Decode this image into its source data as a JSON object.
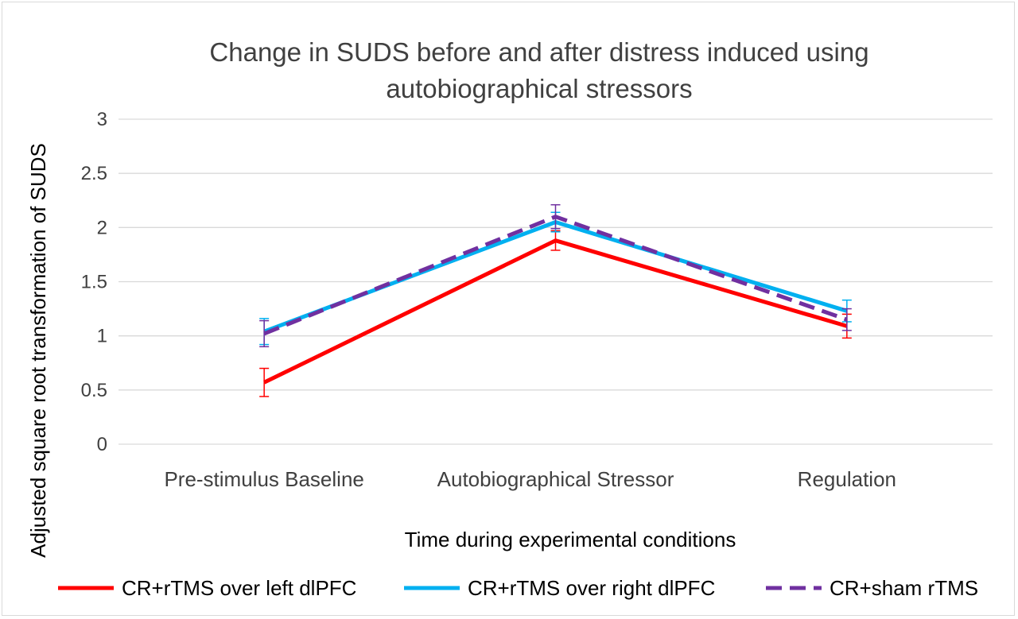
{
  "chart_data": {
    "type": "line",
    "title": "Change in SUDS before and after distress induced using autobiographical stressors",
    "title_lines": [
      "Change in SUDS before and after distress induced using",
      "autobiographical stressors"
    ],
    "xlabel": "Time during experimental conditions",
    "ylabel": "Adjusted square root transformation of SUDS",
    "categories": [
      "Pre-stimulus Baseline",
      "Autobiographical Stressor",
      "Regulation"
    ],
    "ylim": [
      0,
      3
    ],
    "yticks": [
      0,
      0.5,
      1,
      1.5,
      2,
      2.5,
      3
    ],
    "ytick_labels": [
      "0",
      "0.5",
      "1",
      "1.5",
      "2",
      "2.5",
      "3"
    ],
    "grid": true,
    "legend_position": "bottom",
    "series": [
      {
        "name": "CR+rTMS over left dlPFC",
        "color": "#ff0000",
        "style": "solid",
        "values": [
          0.57,
          1.88,
          1.09
        ],
        "err": [
          0.13,
          0.09,
          0.11
        ]
      },
      {
        "name": "CR+rTMS over right dlPFC",
        "color": "#00b0f0",
        "style": "solid",
        "values": [
          1.04,
          2.05,
          1.23
        ],
        "err": [
          0.12,
          0.09,
          0.1
        ]
      },
      {
        "name": "CR+sham rTMS",
        "color": "#7030a0",
        "style": "dashed",
        "values": [
          1.02,
          2.1,
          1.15
        ],
        "err": [
          0.12,
          0.11,
          0.1
        ]
      }
    ]
  }
}
